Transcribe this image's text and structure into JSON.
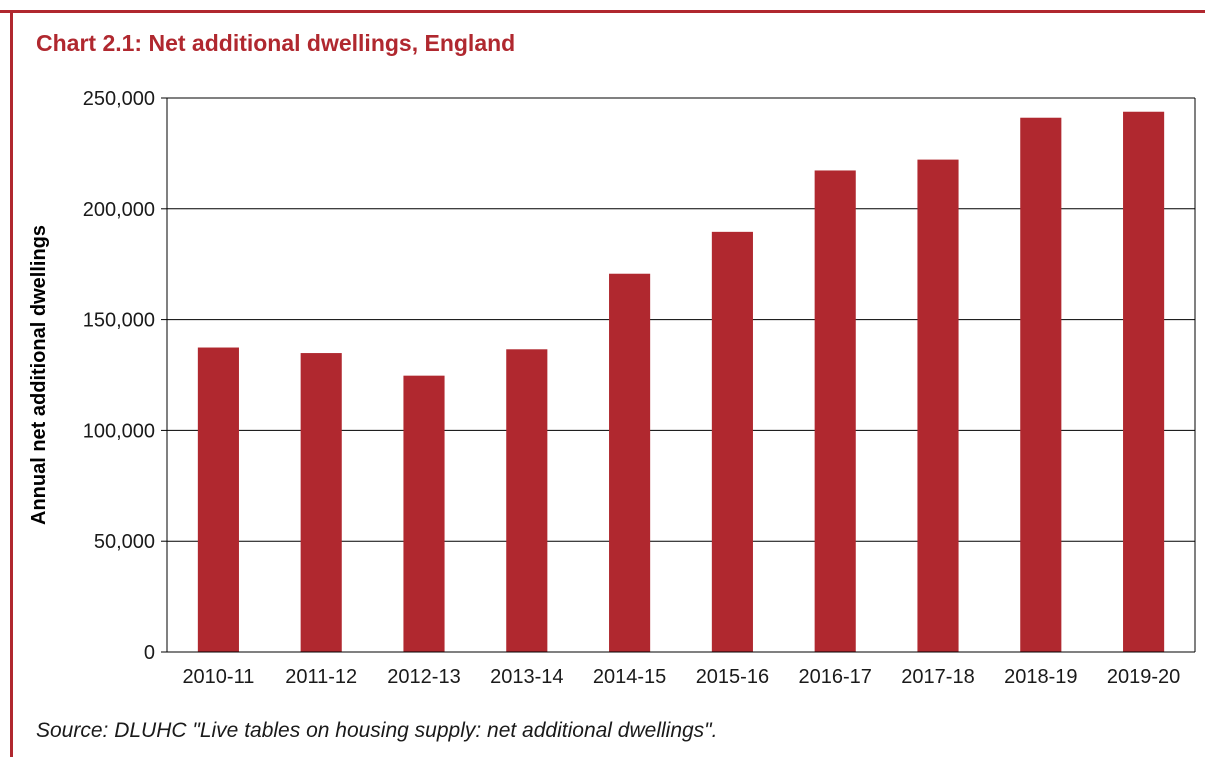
{
  "colors": {
    "accent": "#b0282f",
    "bar": "#b0282f",
    "gridline": "#000000",
    "text": "#1a1a1a"
  },
  "title": "Chart 2.1: Net additional dwellings, England",
  "source": "Source: DLUHC \"Live tables on housing supply: net additional dwellings\".",
  "chart_data": {
    "type": "bar",
    "title": "Chart 2.1: Net additional dwellings, England",
    "xlabel": "",
    "ylabel": "Annual net additional dwellings",
    "categories": [
      "2010-11",
      "2011-12",
      "2012-13",
      "2013-14",
      "2014-15",
      "2015-16",
      "2016-17",
      "2017-18",
      "2018-19",
      "2019-20"
    ],
    "values": [
      137400,
      134900,
      124700,
      136600,
      170700,
      189600,
      217300,
      222200,
      241100,
      243800
    ],
    "ylim": [
      0,
      250000
    ],
    "yticks": [
      0,
      50000,
      100000,
      150000,
      200000,
      250000
    ],
    "ytick_labels": [
      "0",
      "50,000",
      "100,000",
      "150,000",
      "200,000",
      "250,000"
    ],
    "grid": true,
    "legend": "none"
  }
}
